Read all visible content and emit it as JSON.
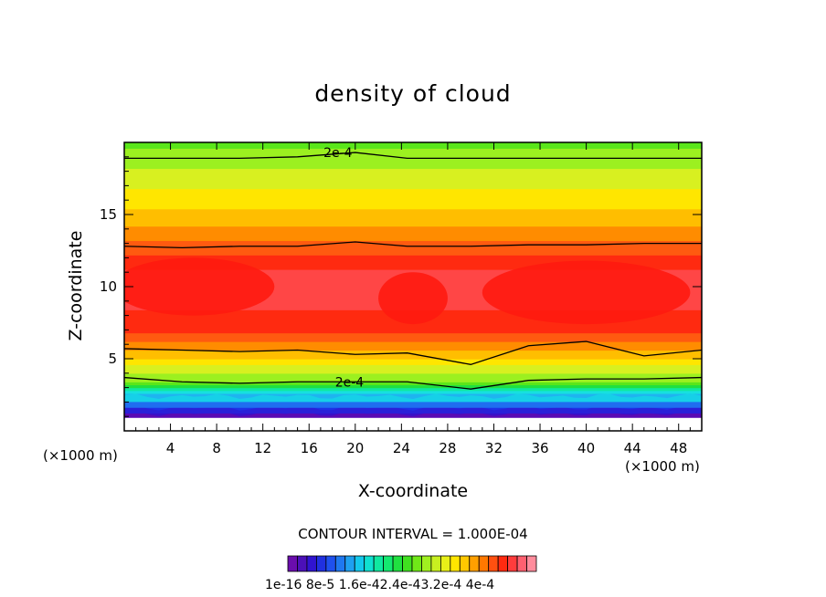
{
  "chart_data": {
    "type": "contour",
    "title": "density of cloud",
    "xlabel": "X-coordinate",
    "ylabel": "Z-coordinate",
    "x_unit": "(×1000 m)",
    "xlim": [
      0,
      50
    ],
    "ylim": [
      0,
      20
    ],
    "x_ticks": [
      4,
      8,
      12,
      16,
      20,
      24,
      28,
      32,
      36,
      40,
      44,
      48
    ],
    "y_ticks": [
      5,
      10,
      15
    ],
    "contour_interval": "CONTOUR INTERVAL = 1.000E-04",
    "contour_label": "2e-4",
    "colorbar_labels": "1e-16 8e-5 1.6e-42.4e-43.2e-4 4e-4",
    "colorbar_range": [
      1e-16,
      0.0004
    ],
    "vertical_profile": [
      {
        "z": 0.9,
        "value": 2e-05
      },
      {
        "z": 1.6,
        "value": 5e-05
      },
      {
        "z": 2.3,
        "value": 9e-05
      },
      {
        "z": 3.0,
        "value": 0.00014
      },
      {
        "z": 3.6,
        "value": 0.0002
      },
      {
        "z": 4.5,
        "value": 0.00023
      },
      {
        "z": 5.5,
        "value": 0.00027
      },
      {
        "z": 7.0,
        "value": 0.00032
      },
      {
        "z": 9.0,
        "value": 0.000345
      },
      {
        "z": 11.0,
        "value": 0.00034
      },
      {
        "z": 12.5,
        "value": 0.00031
      },
      {
        "z": 13.5,
        "value": 0.000285
      },
      {
        "z": 15.0,
        "value": 0.00026
      },
      {
        "z": 17.0,
        "value": 0.00023
      },
      {
        "z": 18.8,
        "value": 0.0002
      },
      {
        "z": 19.8,
        "value": 0.000185
      }
    ],
    "contour_lines": [
      {
        "name": "top",
        "z": [
          18.9,
          18.9,
          18.9,
          19.0,
          19.3,
          18.9,
          18.9,
          18.9,
          18.9,
          18.9,
          18.9
        ]
      },
      {
        "name": "upper",
        "z": [
          12.8,
          12.7,
          12.8,
          12.8,
          13.1,
          12.8,
          12.8,
          12.9,
          12.9,
          13.0,
          13.0
        ]
      },
      {
        "name": "mid",
        "z": [
          5.7,
          5.6,
          5.5,
          5.6,
          5.3,
          5.4,
          4.6,
          5.9,
          6.2,
          5.2,
          5.6
        ]
      },
      {
        "name": "lower",
        "z": [
          3.7,
          3.4,
          3.3,
          3.4,
          3.4,
          3.4,
          2.9,
          3.5,
          3.6,
          3.6,
          3.7
        ]
      }
    ],
    "contour_x": [
      0,
      5,
      10,
      15,
      20,
      24.5,
      30,
      35,
      40,
      45,
      50
    ]
  }
}
